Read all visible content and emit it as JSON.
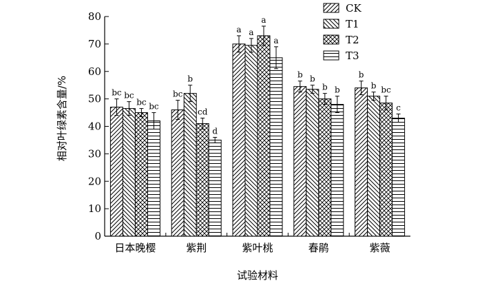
{
  "chart_data": {
    "type": "bar",
    "title": "",
    "xlabel": "试验材料",
    "ylabel": "相对叶绿素含量/%",
    "ylim": [
      0,
      80
    ],
    "yticks": [
      0,
      10,
      20,
      30,
      40,
      50,
      60,
      70,
      80
    ],
    "categories": [
      "日本晚樱",
      "紫荆",
      "紫叶桃",
      "春鹃",
      "紫薇"
    ],
    "legend_position": "top-right",
    "grid": false,
    "series": [
      {
        "name": "CK",
        "pattern": "diagonal-up",
        "values": [
          47.0,
          46.0,
          70.0,
          54.5,
          54.0
        ],
        "errors": [
          3.0,
          3.5,
          3.0,
          2.0,
          2.5
        ],
        "labels": [
          "bc",
          "bc",
          "a",
          "b",
          "b"
        ]
      },
      {
        "name": "T1",
        "pattern": "diagonal-down",
        "values": [
          46.5,
          52.0,
          69.5,
          53.5,
          51.0
        ],
        "errors": [
          2.5,
          3.0,
          2.5,
          1.5,
          1.5
        ],
        "labels": [
          "bc",
          "b",
          "a",
          "b",
          "b"
        ]
      },
      {
        "name": "T2",
        "pattern": "crosshatch",
        "values": [
          45.0,
          41.0,
          73.0,
          50.0,
          48.5
        ],
        "errors": [
          1.5,
          2.0,
          3.5,
          2.0,
          2.5
        ],
        "labels": [
          "bc",
          "cd",
          "a",
          "b",
          "bc"
        ]
      },
      {
        "name": "T3",
        "pattern": "horizontal",
        "values": [
          42.0,
          35.0,
          65.0,
          48.0,
          43.0
        ],
        "errors": [
          3.0,
          1.0,
          4.0,
          3.0,
          1.5
        ],
        "labels": [
          "bc",
          "d",
          "a",
          "b",
          "c"
        ]
      }
    ]
  }
}
